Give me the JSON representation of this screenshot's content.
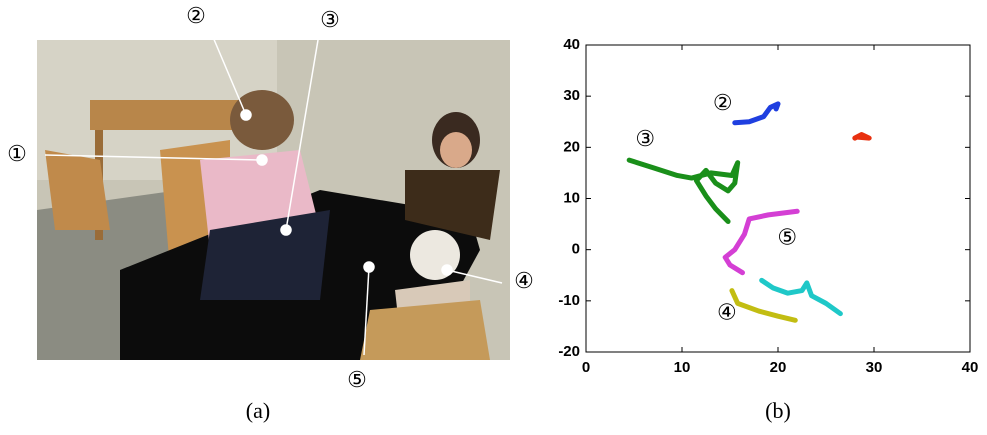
{
  "photo": {
    "labels": [
      "①",
      "②",
      "③",
      "④",
      "⑤"
    ],
    "caption": "(a)"
  },
  "chart_data": {
    "type": "line",
    "caption": "(b)",
    "xlim": [
      0,
      40
    ],
    "ylim": [
      -20,
      40
    ],
    "xticks": [
      0,
      10,
      20,
      30,
      40
    ],
    "yticks": [
      -20,
      -10,
      0,
      10,
      20,
      30,
      40
    ],
    "series": [
      {
        "name": "②",
        "color": "#1f3fe0",
        "x": [
          15.5,
          17,
          18.5,
          19.2,
          20,
          19.8
        ],
        "values": [
          24.8,
          25,
          26,
          27.8,
          28.5,
          27.5
        ]
      },
      {
        "color": "#e8300f",
        "x": [
          28,
          28.7,
          29.5,
          28.3
        ],
        "values": [
          21.8,
          22.5,
          21.8,
          22
        ]
      },
      {
        "name": "③",
        "color": "#1a8f1a",
        "x": [
          4.5,
          7,
          9.5,
          11,
          13,
          15.2,
          15.8,
          15.5,
          14.8,
          13.5,
          12.5,
          11.5,
          12.5,
          13.5,
          14.8
        ],
        "values": [
          17.5,
          16,
          14.5,
          14,
          15,
          14.5,
          17,
          13,
          11.5,
          13,
          15.5,
          13.5,
          10.5,
          8,
          5.5
        ]
      },
      {
        "name": "⑤",
        "color": "#d43fd4",
        "x": [
          22,
          19,
          17,
          16.5,
          15.5,
          14.5,
          15,
          16.3
        ],
        "values": [
          7.5,
          6.8,
          6,
          3,
          0,
          -1.5,
          -3,
          -4.5
        ]
      },
      {
        "color": "#1fc8c8",
        "x": [
          18.3,
          19.5,
          21,
          22.5,
          23,
          23.5,
          25,
          26.5
        ],
        "values": [
          -6,
          -7.5,
          -8.5,
          -8,
          -6.5,
          -9,
          -10.5,
          -12.5
        ]
      },
      {
        "name": "④",
        "color": "#c2bd12",
        "x": [
          15.2,
          15.8,
          18,
          20,
          21.8
        ],
        "values": [
          -8,
          -10.5,
          -12,
          -13,
          -13.8
        ]
      }
    ]
  }
}
